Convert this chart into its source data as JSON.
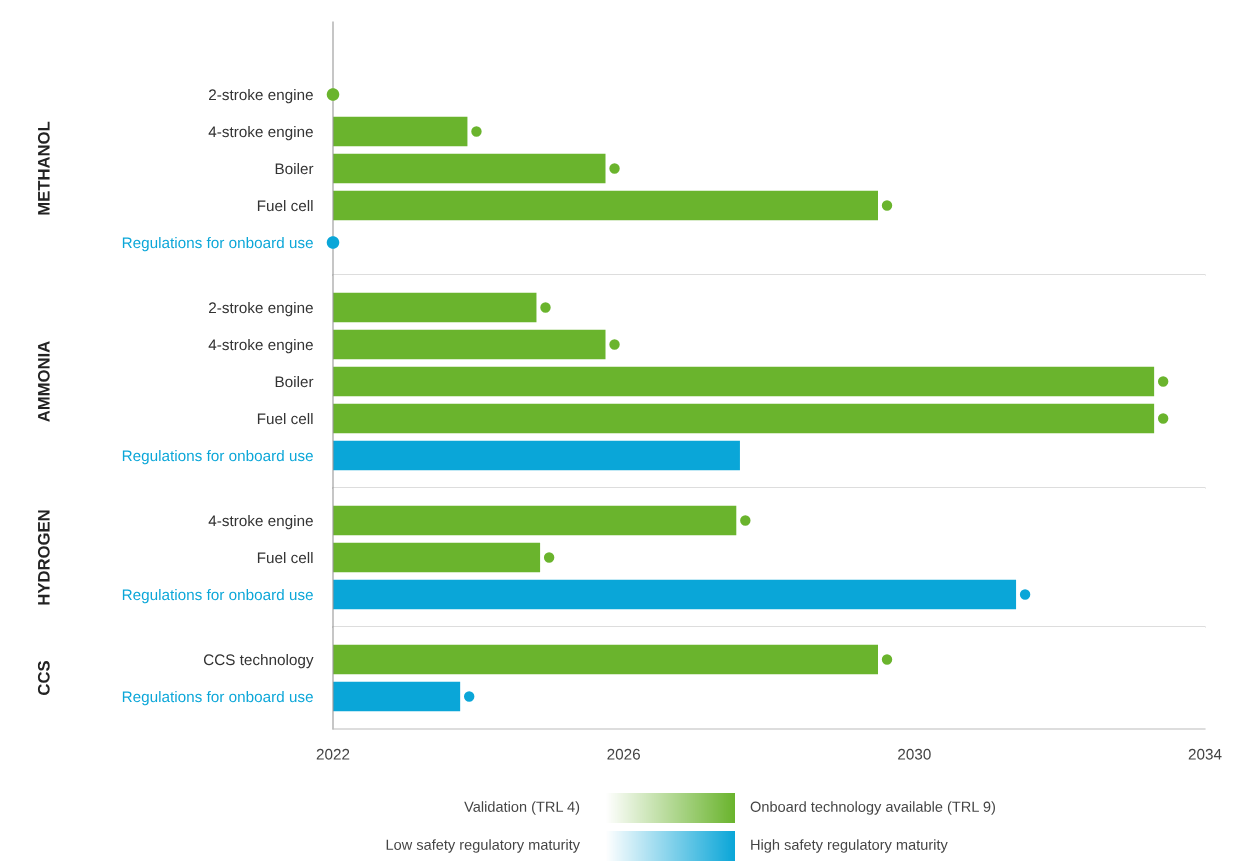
{
  "chart_data": [
    {
      "type": "bar",
      "orientation": "horizontal",
      "title": "METHANOL",
      "tick_labels": "y",
      "marker": "circle",
      "categories": [
        "2-stroke engine",
        "4-stroke engine",
        "Boiler",
        "Fuel cell",
        "Regulations for onboard use"
      ],
      "series": [
        {
          "color": "#6ab42d",
          "values": [
            2022,
            2023.85,
            2025.75,
            2029.5,
            null
          ]
        },
        {
          "color": "#0aa6d8",
          "values": [
            null,
            null,
            null,
            null,
            2022
          ]
        }
      ],
      "xlim": [
        2022,
        2034
      ],
      "xticks": [
        2022,
        2026,
        2030,
        2034
      ]
    },
    {
      "type": "bar",
      "orientation": "horizontal",
      "title": "AMMONIA",
      "tick_labels": "y",
      "marker": "circle",
      "categories": [
        "2-stroke engine",
        "4-stroke engine",
        "Boiler",
        "Fuel cell",
        "Regulations for onboard use"
      ],
      "series": [
        {
          "color": "#6ab42d",
          "values": [
            2024.8,
            2025.75,
            2033.3,
            2033.3,
            null
          ]
        },
        {
          "color": "#0aa6d8",
          "marker": "none",
          "values": [
            null,
            null,
            null,
            null,
            2027.6
          ]
        }
      ],
      "xlim": [
        2022,
        2034
      ],
      "xticks": [
        2022,
        2026,
        2030,
        2034
      ]
    },
    {
      "type": "bar",
      "orientation": "horizontal",
      "title": "HYDROGEN",
      "tick_labels": "y",
      "marker": "circle",
      "categories": [
        "4-stroke engine",
        "Fuel cell",
        "Regulations for onboard use"
      ],
      "series": [
        {
          "color": "#6ab42d",
          "values": [
            2027.55,
            2024.85,
            null
          ]
        },
        {
          "color": "#0aa6d8",
          "values": [
            null,
            null,
            2031.4
          ]
        }
      ],
      "xlim": [
        2022,
        2034
      ],
      "xticks": [
        2022,
        2026,
        2030,
        2034
      ]
    },
    {
      "type": "bar",
      "orientation": "horizontal",
      "title": "CCS",
      "marker": "circle",
      "categories": [
        "CCS technology",
        "Regulations for onboard use"
      ],
      "series": [
        {
          "color": "#6ab42d",
          "values": [
            2029.5,
            null
          ]
        },
        {
          "color": "#0aa6d8",
          "values": [
            null,
            2023.75
          ]
        }
      ],
      "xlim": [
        2022,
        2034
      ],
      "xticks": [
        2022,
        2026,
        2030,
        2034
      ],
      "annotations": [
        "Validation (TRL 4)",
        "Onboard technology available (TRL 9)",
        "Low safety regulatory maturity",
        "High safety regulatory maturity"
      ]
    }
  ]
}
